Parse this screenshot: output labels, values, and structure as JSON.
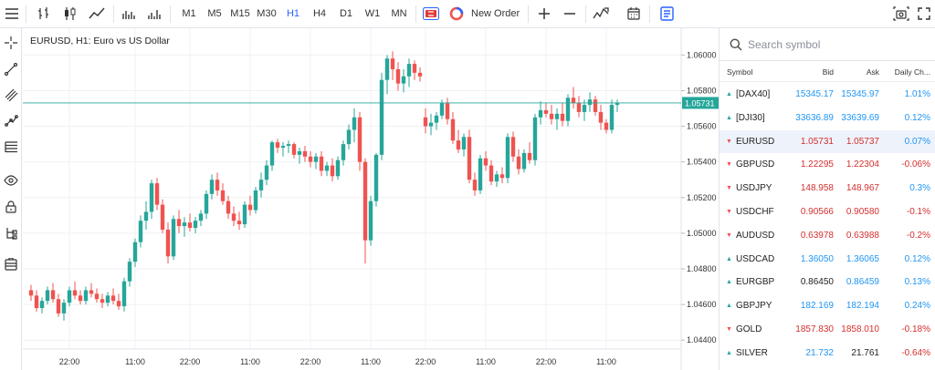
{
  "toolbar": {
    "timeframes": [
      "M1",
      "M5",
      "M15",
      "M30",
      "H1",
      "H4",
      "D1",
      "W1",
      "MN"
    ],
    "active_timeframe": "H1",
    "new_order_label": "New Order"
  },
  "chart": {
    "title": "EURUSD, H1: Euro vs US Dollar",
    "current_price_label": "1.05731"
  },
  "chart_data": {
    "type": "candlestick",
    "symbol": "EURUSD",
    "timeframe": "H1",
    "ylim": [
      1.0435,
      1.0615
    ],
    "y_ticks": [
      "1.06000",
      "1.05800",
      "1.05600",
      "1.05400",
      "1.05200",
      "1.05000",
      "1.04800",
      "1.04600",
      "1.04400"
    ],
    "y_tick_values": [
      1.06,
      1.058,
      1.056,
      1.054,
      1.052,
      1.05,
      1.048,
      1.046,
      1.044
    ],
    "x_ticks": [
      "22:00",
      "11:00",
      "22:00",
      "11:00",
      "22:00",
      "11:00",
      "22:00",
      "11:00",
      "22:00",
      "11:00"
    ],
    "x_tick_index": [
      7,
      19,
      29,
      40,
      51,
      62,
      72,
      83,
      94,
      105
    ],
    "current_price": 1.05731,
    "up_color": "#26a69a",
    "down_color": "#ef5350",
    "candles": [
      [
        1.0468,
        1.0471,
        1.0462,
        1.0465
      ],
      [
        1.0465,
        1.0468,
        1.0456,
        1.0458
      ],
      [
        1.0458,
        1.0464,
        1.0455,
        1.0462
      ],
      [
        1.0462,
        1.047,
        1.046,
        1.0468
      ],
      [
        1.0468,
        1.0472,
        1.0461,
        1.0463
      ],
      [
        1.0463,
        1.0466,
        1.0453,
        1.0455
      ],
      [
        1.0455,
        1.0463,
        1.0451,
        1.0461
      ],
      [
        1.0461,
        1.047,
        1.0459,
        1.0468
      ],
      [
        1.0468,
        1.0473,
        1.0463,
        1.0465
      ],
      [
        1.0465,
        1.0468,
        1.046,
        1.0462
      ],
      [
        1.0462,
        1.047,
        1.046,
        1.0468
      ],
      [
        1.0468,
        1.0472,
        1.0464,
        1.0466
      ],
      [
        1.0466,
        1.0469,
        1.0461,
        1.0463
      ],
      [
        1.0463,
        1.0466,
        1.0458,
        1.0461
      ],
      [
        1.0461,
        1.0467,
        1.0459,
        1.0465
      ],
      [
        1.0465,
        1.0469,
        1.046,
        1.0462
      ],
      [
        1.0462,
        1.0466,
        1.0457,
        1.0459
      ],
      [
        1.0459,
        1.0475,
        1.0456,
        1.0473
      ],
      [
        1.0473,
        1.0486,
        1.047,
        1.0484
      ],
      [
        1.0484,
        1.0497,
        1.0481,
        1.0495
      ],
      [
        1.0495,
        1.051,
        1.0492,
        1.0507
      ],
      [
        1.0507,
        1.0518,
        1.0502,
        1.0512
      ],
      [
        1.0512,
        1.053,
        1.0508,
        1.0528
      ],
      [
        1.0528,
        1.0531,
        1.0513,
        1.0516
      ],
      [
        1.0516,
        1.0519,
        1.05,
        1.0502
      ],
      [
        1.0502,
        1.0506,
        1.0483,
        1.0487
      ],
      [
        1.0487,
        1.051,
        1.0485,
        1.0508
      ],
      [
        1.0508,
        1.0513,
        1.05,
        1.0504
      ],
      [
        1.0504,
        1.0509,
        1.0498,
        1.0506
      ],
      [
        1.0506,
        1.0511,
        1.0501,
        1.0503
      ],
      [
        1.0503,
        1.0509,
        1.05,
        1.0507
      ],
      [
        1.0507,
        1.0513,
        1.0504,
        1.0511
      ],
      [
        1.0511,
        1.0524,
        1.0508,
        1.0522
      ],
      [
        1.0522,
        1.0533,
        1.0519,
        1.053
      ],
      [
        1.053,
        1.0534,
        1.0521,
        1.0524
      ],
      [
        1.0524,
        1.0528,
        1.0516,
        1.0518
      ],
      [
        1.0518,
        1.0521,
        1.0508,
        1.0511
      ],
      [
        1.0511,
        1.0515,
        1.0504,
        1.0507
      ],
      [
        1.0507,
        1.0512,
        1.0502,
        1.0505
      ],
      [
        1.0505,
        1.0518,
        1.0503,
        1.0516
      ],
      [
        1.0516,
        1.0521,
        1.051,
        1.0513
      ],
      [
        1.0513,
        1.0526,
        1.0511,
        1.0524
      ],
      [
        1.0524,
        1.0534,
        1.052,
        1.053
      ],
      [
        1.053,
        1.0541,
        1.0527,
        1.0538
      ],
      [
        1.0538,
        1.0552,
        1.0535,
        1.0551
      ],
      [
        1.0551,
        1.0553,
        1.0545,
        1.0548
      ],
      [
        1.0548,
        1.0551,
        1.0543,
        1.0549
      ],
      [
        1.0549,
        1.0552,
        1.0545,
        1.055
      ],
      [
        1.055,
        1.0551,
        1.0542,
        1.0544
      ],
      [
        1.0544,
        1.0548,
        1.0539,
        1.0546
      ],
      [
        1.0546,
        1.0549,
        1.054,
        1.0543
      ],
      [
        1.0543,
        1.0546,
        1.0537,
        1.054
      ],
      [
        1.054,
        1.0545,
        1.0536,
        1.0543
      ],
      [
        1.0543,
        1.0546,
        1.0532,
        1.0535
      ],
      [
        1.0535,
        1.054,
        1.0532,
        1.0538
      ],
      [
        1.0538,
        1.0542,
        1.0529,
        1.0532
      ],
      [
        1.0532,
        1.0543,
        1.053,
        1.0541
      ],
      [
        1.0541,
        1.0552,
        1.0538,
        1.055
      ],
      [
        1.055,
        1.0561,
        1.0547,
        1.0558
      ],
      [
        1.0558,
        1.057,
        1.0551,
        1.0565
      ],
      [
        1.0565,
        1.0568,
        1.0535,
        1.054
      ],
      [
        1.054,
        1.0542,
        1.0483,
        1.0496
      ],
      [
        1.0496,
        1.0521,
        1.0493,
        1.0518
      ],
      [
        1.0518,
        1.0545,
        1.0515,
        1.0544
      ],
      [
        1.0544,
        1.059,
        1.0541,
        1.0586
      ],
      [
        1.0586,
        1.06,
        1.0578,
        1.0598
      ],
      [
        1.0598,
        1.0602,
        1.0586,
        1.0592
      ],
      [
        1.0592,
        1.0596,
        1.058,
        1.0584
      ],
      [
        1.0584,
        1.0592,
        1.0579,
        1.0588
      ],
      [
        1.0588,
        1.0598,
        1.0582,
        1.0595
      ],
      [
        1.0595,
        1.0597,
        1.0586,
        1.059
      ],
      [
        1.059,
        1.0593,
        1.0585,
        1.0588
      ],
      [
        1.0565,
        1.057,
        1.0556,
        1.056
      ],
      [
        1.056,
        1.0567,
        1.0555,
        1.0562
      ],
      [
        1.0562,
        1.0568,
        1.0558,
        1.0566
      ],
      [
        1.0566,
        1.0575,
        1.0564,
        1.0573
      ],
      [
        1.0573,
        1.0576,
        1.0561,
        1.0564
      ],
      [
        1.0564,
        1.0568,
        1.055,
        1.0552
      ],
      [
        1.0552,
        1.0558,
        1.0545,
        1.0547
      ],
      [
        1.0547,
        1.0556,
        1.0543,
        1.0554
      ],
      [
        1.0554,
        1.0558,
        1.0528,
        1.053
      ],
      [
        1.053,
        1.0534,
        1.0521,
        1.0524
      ],
      [
        1.0524,
        1.0544,
        1.0522,
        1.0542
      ],
      [
        1.0542,
        1.0546,
        1.0535,
        1.0538
      ],
      [
        1.0538,
        1.0541,
        1.0527,
        1.0529
      ],
      [
        1.0529,
        1.0535,
        1.0526,
        1.0533
      ],
      [
        1.0533,
        1.0537,
        1.0528,
        1.0531
      ],
      [
        1.0531,
        1.0556,
        1.0528,
        1.0554
      ],
      [
        1.0554,
        1.0557,
        1.054,
        1.0543
      ],
      [
        1.0543,
        1.0547,
        1.0533,
        1.0536
      ],
      [
        1.0536,
        1.0547,
        1.0534,
        1.0545
      ],
      [
        1.0545,
        1.0551,
        1.0539,
        1.0541
      ],
      [
        1.0541,
        1.0567,
        1.0538,
        1.0565
      ],
      [
        1.0565,
        1.0574,
        1.0561,
        1.0569
      ],
      [
        1.0569,
        1.0573,
        1.0565,
        1.0567
      ],
      [
        1.0567,
        1.0572,
        1.0561,
        1.0564
      ],
      [
        1.0564,
        1.057,
        1.0558,
        1.0567
      ],
      [
        1.0567,
        1.0573,
        1.056,
        1.0563
      ],
      [
        1.0563,
        1.0578,
        1.056,
        1.0576
      ],
      [
        1.0576,
        1.0582,
        1.057,
        1.0573
      ],
      [
        1.0573,
        1.0577,
        1.0565,
        1.0568
      ],
      [
        1.0568,
        1.0575,
        1.0563,
        1.0572
      ],
      [
        1.0572,
        1.0579,
        1.0568,
        1.0575
      ],
      [
        1.0575,
        1.0577,
        1.0566,
        1.0568
      ],
      [
        1.0568,
        1.0572,
        1.0558,
        1.0562
      ],
      [
        1.0562,
        1.0564,
        1.0556,
        1.0558
      ],
      [
        1.0558,
        1.0575,
        1.0556,
        1.0572
      ],
      [
        1.0572,
        1.0575,
        1.0568,
        1.0573
      ]
    ]
  },
  "watchlist": {
    "search_placeholder": "Search symbol",
    "columns": {
      "symbol": "Symbol",
      "bid": "Bid",
      "ask": "Ask",
      "change": "Daily Ch..."
    },
    "rows": [
      {
        "symbol": "[DAX40]",
        "bid": "15345.17",
        "ask": "15345.97",
        "change": "1.01%",
        "direction": "up",
        "bid_color": "#2196f3",
        "ask_color": "#2196f3",
        "change_color": "#2196f3"
      },
      {
        "symbol": "[DJI30]",
        "bid": "33636.89",
        "ask": "33639.69",
        "change": "0.12%",
        "direction": "up",
        "bid_color": "#2196f3",
        "ask_color": "#2196f3",
        "change_color": "#2196f3"
      },
      {
        "symbol": "EURUSD",
        "bid": "1.05731",
        "ask": "1.05737",
        "change": "0.07%",
        "direction": "down",
        "bid_color": "#d32f2f",
        "ask_color": "#d32f2f",
        "change_color": "#2196f3"
      },
      {
        "symbol": "GBPUSD",
        "bid": "1.22295",
        "ask": "1.22304",
        "change": "-0.06%",
        "direction": "down",
        "bid_color": "#d32f2f",
        "ask_color": "#d32f2f",
        "change_color": "#d32f2f"
      },
      {
        "symbol": "USDJPY",
        "bid": "148.958",
        "ask": "148.967",
        "change": "0.3%",
        "direction": "down",
        "bid_color": "#d32f2f",
        "ask_color": "#d32f2f",
        "change_color": "#2196f3"
      },
      {
        "symbol": "USDCHF",
        "bid": "0.90566",
        "ask": "0.90580",
        "change": "-0.1%",
        "direction": "down",
        "bid_color": "#d32f2f",
        "ask_color": "#d32f2f",
        "change_color": "#d32f2f"
      },
      {
        "symbol": "AUDUSD",
        "bid": "0.63978",
        "ask": "0.63988",
        "change": "-0.2%",
        "direction": "down",
        "bid_color": "#d32f2f",
        "ask_color": "#d32f2f",
        "change_color": "#d32f2f"
      },
      {
        "symbol": "USDCAD",
        "bid": "1.36050",
        "ask": "1.36065",
        "change": "0.12%",
        "direction": "up",
        "bid_color": "#2196f3",
        "ask_color": "#2196f3",
        "change_color": "#2196f3"
      },
      {
        "symbol": "EURGBP",
        "bid": "0.86450",
        "ask": "0.86459",
        "change": "0.13%",
        "direction": "up",
        "bid_color": "#222222",
        "ask_color": "#2196f3",
        "change_color": "#2196f3"
      },
      {
        "symbol": "GBPJPY",
        "bid": "182.169",
        "ask": "182.194",
        "change": "0.24%",
        "direction": "up",
        "bid_color": "#2196f3",
        "ask_color": "#2196f3",
        "change_color": "#2196f3"
      },
      {
        "symbol": "GOLD",
        "bid": "1857.830",
        "ask": "1858.010",
        "change": "-0.18%",
        "direction": "down",
        "bid_color": "#d32f2f",
        "ask_color": "#d32f2f",
        "change_color": "#d32f2f"
      },
      {
        "symbol": "SILVER",
        "bid": "21.732",
        "ask": "21.761",
        "change": "-0.64%",
        "direction": "up",
        "bid_color": "#2196f3",
        "ask_color": "#222222",
        "change_color": "#d32f2f"
      }
    ],
    "selected_symbol": "EURUSD"
  }
}
